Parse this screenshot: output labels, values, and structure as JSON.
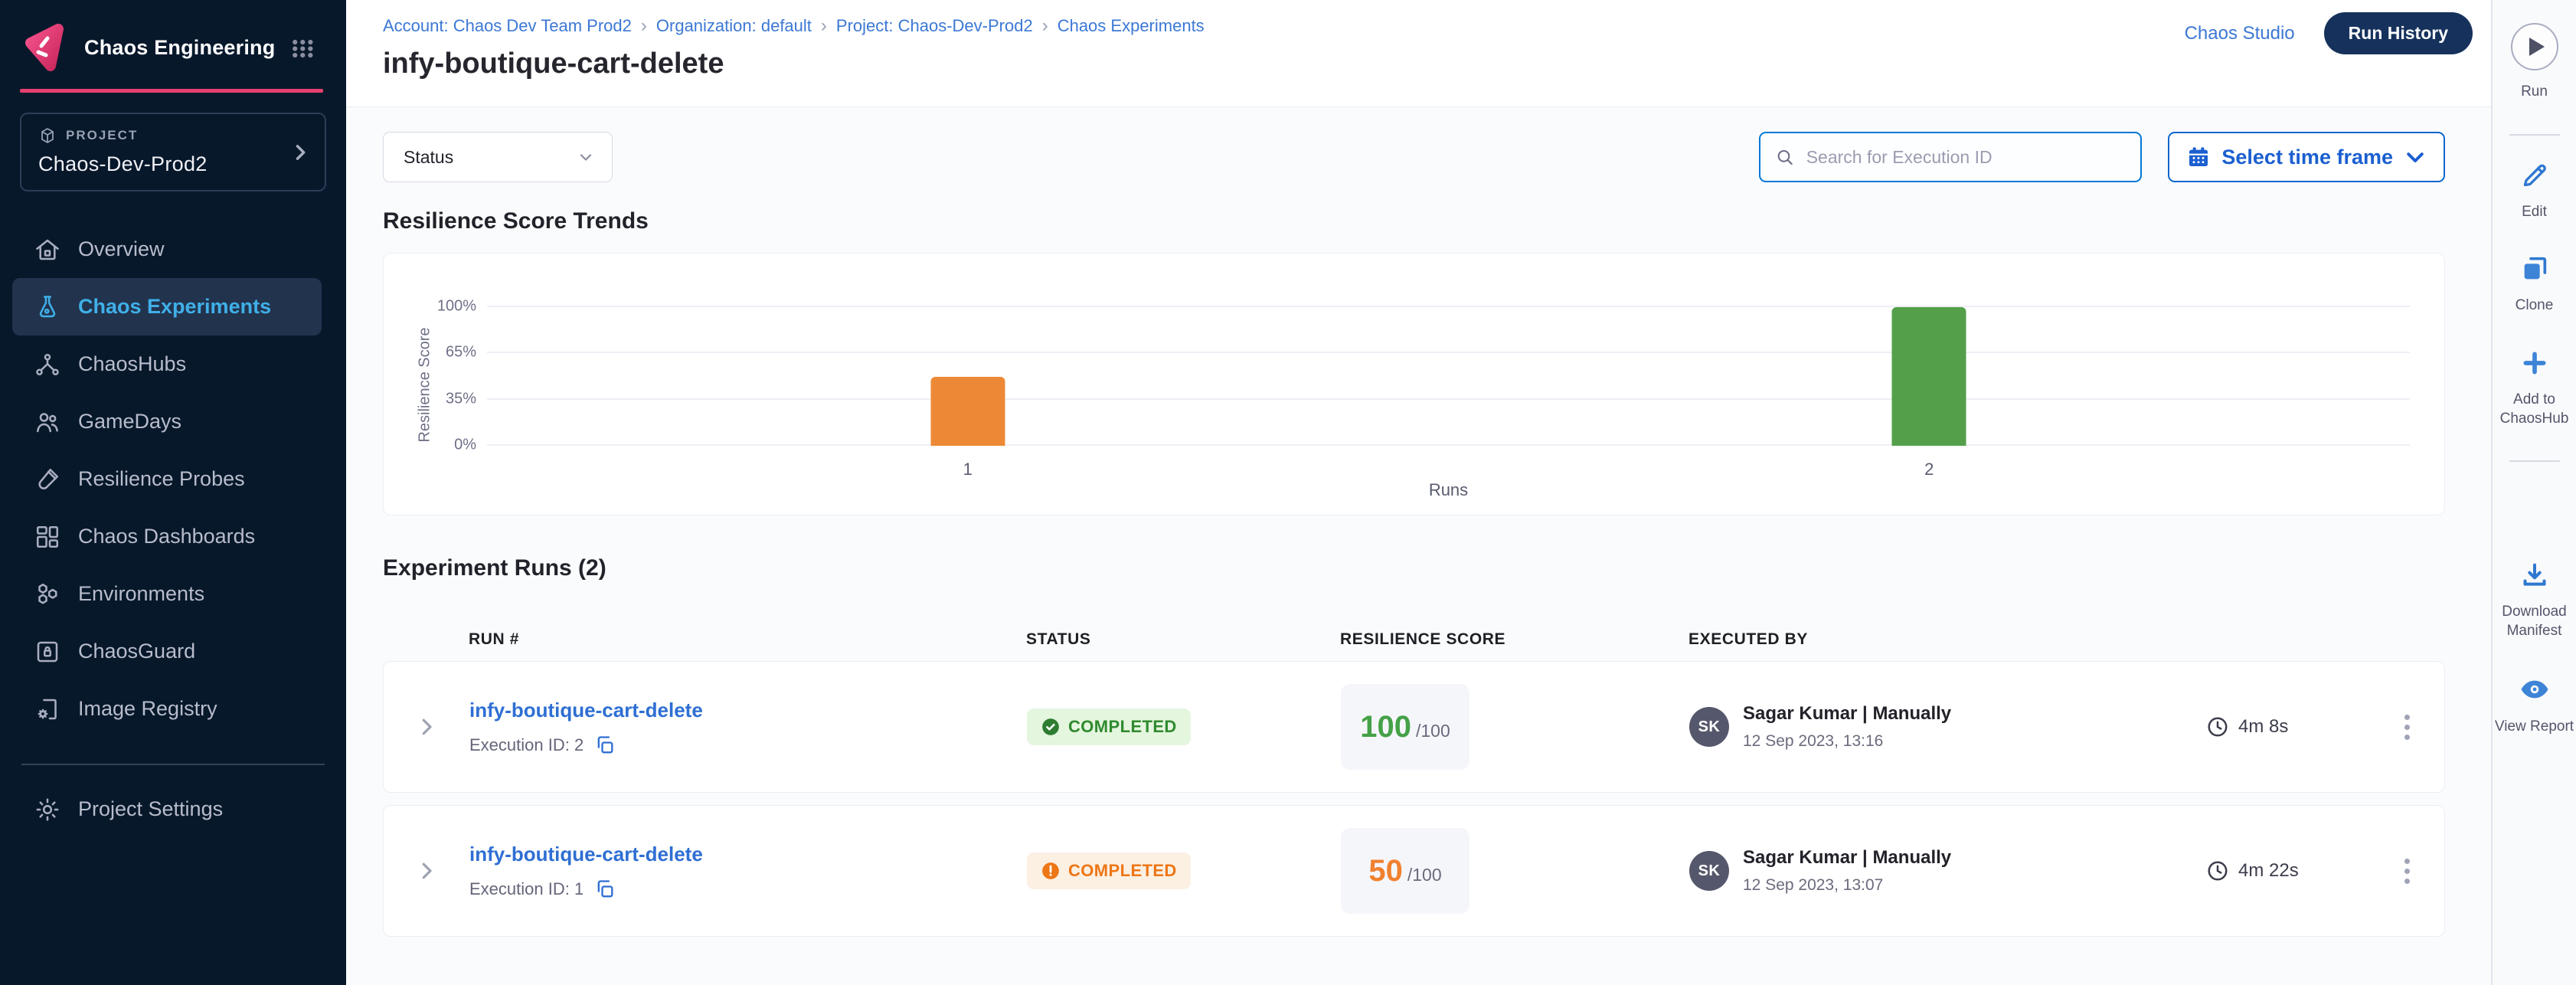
{
  "app": {
    "product_name": "Chaos Engineering"
  },
  "sidebar": {
    "project_label": "PROJECT",
    "project_name": "Chaos-Dev-Prod2",
    "items": [
      {
        "label": "Overview",
        "icon": "home-icon",
        "active": false
      },
      {
        "label": "Chaos Experiments",
        "icon": "flask-icon",
        "active": true
      },
      {
        "label": "ChaosHubs",
        "icon": "hub-icon",
        "active": false
      },
      {
        "label": "GameDays",
        "icon": "people-icon",
        "active": false
      },
      {
        "label": "Resilience Probes",
        "icon": "probe-icon",
        "active": false
      },
      {
        "label": "Chaos Dashboards",
        "icon": "dashboard-icon",
        "active": false
      },
      {
        "label": "Environments",
        "icon": "hexagons-icon",
        "active": false
      },
      {
        "label": "ChaosGuard",
        "icon": "lock-card-icon",
        "active": false
      },
      {
        "label": "Image Registry",
        "icon": "registry-icon",
        "active": false
      }
    ],
    "footer_item": {
      "label": "Project Settings",
      "icon": "gear-icon"
    }
  },
  "header": {
    "breadcrumb": [
      {
        "label": "Account: Chaos Dev Team Prod2"
      },
      {
        "label": "Organization: default"
      },
      {
        "label": "Project: Chaos-Dev-Prod2"
      },
      {
        "label": "Chaos Experiments"
      }
    ],
    "breadcrumb_separator": "›",
    "title": "infy-boutique-cart-delete",
    "chaos_studio_link": "Chaos Studio",
    "run_history_button": "Run History"
  },
  "toolbar": {
    "status_filter_label": "Status",
    "search_placeholder": "Search for Execution ID",
    "time_frame_button": "Select time frame"
  },
  "trends": {
    "heading": "Resilience Score Trends"
  },
  "chart_data": {
    "type": "bar",
    "title": "Resilience Score Trends",
    "categories": [
      "1",
      "2"
    ],
    "values": [
      50,
      100
    ],
    "bar_colors": [
      "#ED8936",
      "#54A04A"
    ],
    "xlabel": "Runs",
    "ylabel": "Resilience Score",
    "yticks": [
      "0%",
      "35%",
      "65%",
      "100%"
    ],
    "ylim": [
      0,
      100
    ],
    "grid": true,
    "legend": false
  },
  "runs_section": {
    "heading": "Experiment Runs (2)",
    "columns": [
      "RUN #",
      "STATUS",
      "RESILIENCE SCORE",
      "EXECUTED BY"
    ],
    "rows": [
      {
        "name": "infy-boutique-cart-delete",
        "execution_id_label": "Execution ID: 2",
        "status": "COMPLETED",
        "status_kind": "success",
        "score": "100",
        "score_max": "/100",
        "executed_by_initials": "SK",
        "executed_by": "Sagar Kumar | Manually",
        "executed_at": "12 Sep 2023, 13:16",
        "duration": "4m 8s"
      },
      {
        "name": "infy-boutique-cart-delete",
        "execution_id_label": "Execution ID: 1",
        "status": "COMPLETED",
        "status_kind": "warning",
        "score": "50",
        "score_max": "/100",
        "executed_by_initials": "SK",
        "executed_by": "Sagar Kumar | Manually",
        "executed_at": "12 Sep 2023, 13:07",
        "duration": "4m 22s"
      }
    ]
  },
  "action_rail": {
    "run_label": "Run",
    "edit_label": "Edit",
    "clone_label": "Clone",
    "add_to_chaoshub_label": "Add to ChaosHub",
    "download_manifest_label": "Download Manifest",
    "view_report_label": "View Report"
  },
  "colors": {
    "brand_pink": "#E4416F",
    "accent_blue": "#0278D5",
    "link_blue": "#3C78D4",
    "sidebar_bg": "#07182B",
    "sidebar_active_text": "#3FB0E8",
    "success_green": "#2F8A2E",
    "warning_orange": "#ED7615",
    "run_history_bg": "#16325C"
  }
}
